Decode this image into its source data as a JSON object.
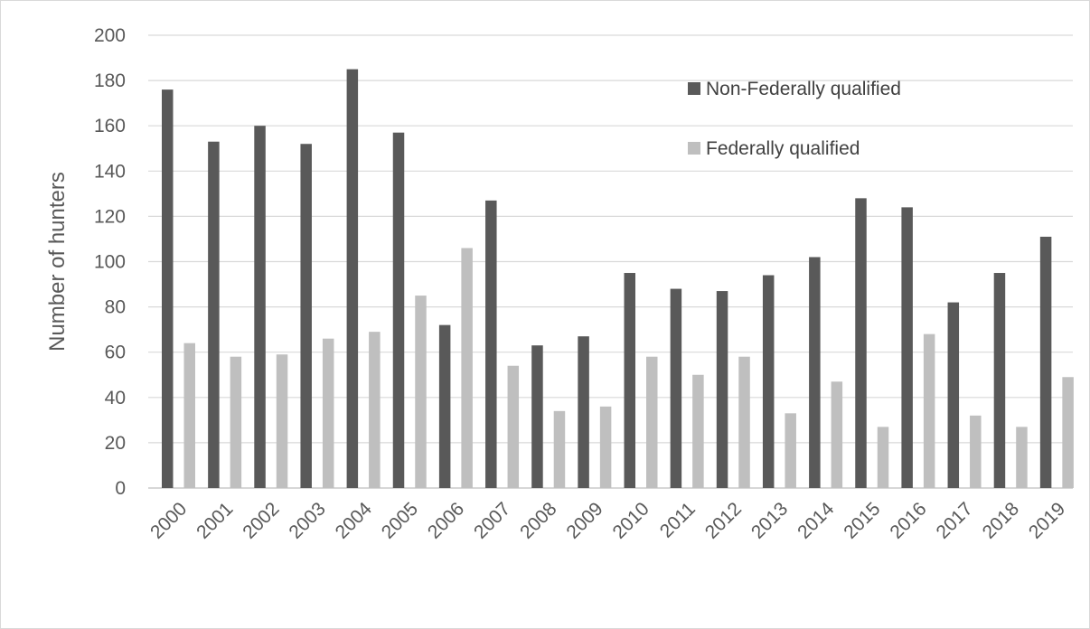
{
  "chart_data": {
    "type": "bar",
    "title": "",
    "xlabel": "",
    "ylabel": "Number of hunters",
    "ylim": [
      0,
      200
    ],
    "yticks": [
      0,
      20,
      40,
      60,
      80,
      100,
      120,
      140,
      160,
      180,
      200
    ],
    "grid": true,
    "legend_position": "top-right",
    "categories": [
      "2000",
      "2001",
      "2002",
      "2003",
      "2004",
      "2005",
      "2006",
      "2007",
      "2008",
      "2009",
      "2010",
      "2011",
      "2012",
      "2013",
      "2014",
      "2015",
      "2016",
      "2017",
      "2018",
      "2019"
    ],
    "series": [
      {
        "name": "Non-Federally qualified",
        "color": "#595959",
        "values": [
          176,
          153,
          160,
          152,
          185,
          157,
          72,
          127,
          63,
          67,
          95,
          88,
          87,
          94,
          102,
          128,
          124,
          82,
          95,
          111
        ]
      },
      {
        "name": "Federally qualified",
        "color": "#bfbfbf",
        "values": [
          64,
          58,
          59,
          66,
          69,
          85,
          106,
          54,
          34,
          36,
          58,
          50,
          58,
          33,
          47,
          27,
          68,
          32,
          27,
          49
        ]
      }
    ]
  }
}
